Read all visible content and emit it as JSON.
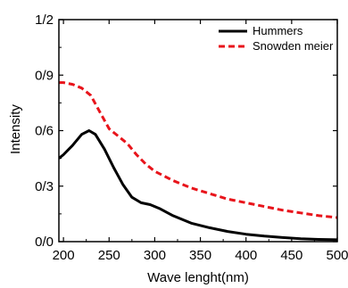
{
  "chart_data": {
    "type": "line",
    "xlabel": "Wave lenght(nm)",
    "ylabel": "Intensity",
    "xlim": [
      195,
      500
    ],
    "ylim": [
      0,
      1.2
    ],
    "x_ticks": [
      200,
      250,
      300,
      350,
      400,
      450,
      500
    ],
    "y_ticks": [
      0,
      0.3,
      0.6,
      0.9,
      1.2
    ],
    "x_tick_labels": [
      "200",
      "250",
      "300",
      "350",
      "400",
      "450",
      "500"
    ],
    "y_tick_labels": [
      "0/0",
      "0/3",
      "0/6",
      "0/9",
      "1/2"
    ],
    "grid": false,
    "legend_position": "top-right",
    "series": [
      {
        "name": "Hummers",
        "color": "#000000",
        "style": "solid",
        "x": [
          195,
          200,
          210,
          220,
          228,
          235,
          245,
          255,
          265,
          275,
          285,
          295,
          305,
          320,
          340,
          360,
          380,
          400,
          420,
          440,
          460,
          480,
          500
        ],
        "y": [
          0.45,
          0.47,
          0.52,
          0.58,
          0.6,
          0.58,
          0.5,
          0.4,
          0.31,
          0.24,
          0.21,
          0.2,
          0.18,
          0.14,
          0.1,
          0.075,
          0.055,
          0.04,
          0.03,
          0.022,
          0.016,
          0.012,
          0.01
        ]
      },
      {
        "name": "Snowden meier",
        "color": "#e8141b",
        "style": "dashed",
        "x": [
          195,
          200,
          210,
          220,
          230,
          240,
          250,
          260,
          270,
          280,
          290,
          300,
          320,
          340,
          360,
          380,
          400,
          420,
          440,
          460,
          480,
          500
        ],
        "y": [
          0.86,
          0.86,
          0.85,
          0.83,
          0.79,
          0.7,
          0.61,
          0.57,
          0.53,
          0.47,
          0.42,
          0.38,
          0.33,
          0.29,
          0.26,
          0.23,
          0.21,
          0.19,
          0.17,
          0.155,
          0.14,
          0.13
        ]
      }
    ]
  }
}
